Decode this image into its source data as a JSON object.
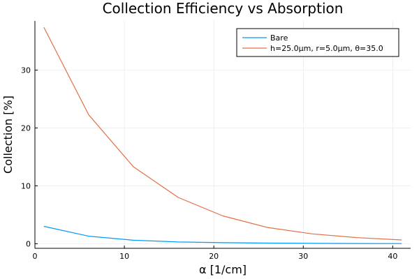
{
  "chart_data": {
    "type": "line",
    "title": "Collection Efficiency vs Absorption",
    "xlabel": "α [1/cm]",
    "ylabel": "Collection [%]",
    "xlim": [
      0,
      42
    ],
    "ylim": [
      -0.8,
      38.5
    ],
    "xticks": [
      0,
      10,
      20,
      30,
      40
    ],
    "yticks": [
      0,
      10,
      20,
      30
    ],
    "grid": true,
    "legend_position": "top-right",
    "series": [
      {
        "name": "Bare",
        "color": "#009AFA",
        "x": [
          1,
          6,
          11,
          16,
          21,
          26,
          31,
          36,
          41
        ],
        "y": [
          3.0,
          1.3,
          0.6,
          0.3,
          0.18,
          0.1,
          0.06,
          0.03,
          0.02
        ]
      },
      {
        "name": "h=25.0μm, r=5.0μm, θ=35.0",
        "color": "#E26F46",
        "x": [
          1,
          6,
          11,
          16,
          21,
          26,
          31,
          36,
          41
        ],
        "y": [
          37.4,
          22.3,
          13.3,
          8.0,
          4.8,
          2.8,
          1.7,
          1.05,
          0.65
        ]
      }
    ]
  }
}
